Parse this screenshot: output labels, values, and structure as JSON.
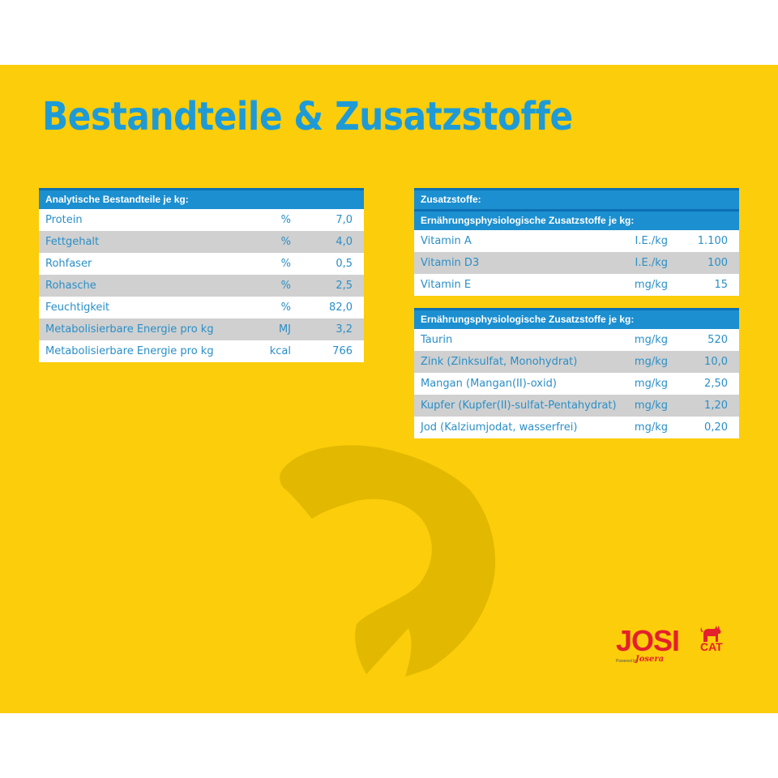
{
  "title": "Bestandteile & Zusatzstoffe",
  "colors": {
    "background": "#fbcd0a",
    "accent": "#1e9bd7",
    "header": "#1b8fd0",
    "alt_row": "#d0d0d0",
    "logo": "#e3202b"
  },
  "analytic": {
    "header": "Analytische Bestandteile je kg:",
    "rows": [
      {
        "name": "Protein",
        "unit": "%",
        "value": "7,0"
      },
      {
        "name": "Fettgehalt",
        "unit": "%",
        "value": "4,0"
      },
      {
        "name": "Rohfaser",
        "unit": "%",
        "value": "0,5"
      },
      {
        "name": "Rohasche",
        "unit": "%",
        "value": "2,5"
      },
      {
        "name": "Feuchtigkeit",
        "unit": "%",
        "value": "82,0"
      },
      {
        "name": "Metabolisierbare Energie pro kg",
        "unit": "MJ",
        "value": "3,2"
      },
      {
        "name": "Metabolisierbare Energie pro kg",
        "unit": "kcal",
        "value": "766"
      }
    ]
  },
  "additives": {
    "header": "Zusatzstoffe:",
    "subheader": "Ernährungsphysiologische Zusatzstoffe je kg:",
    "rows": [
      {
        "name": "Vitamin A",
        "unit": "I.E./kg",
        "value": "1.100"
      },
      {
        "name": "Vitamin D3",
        "unit": "I.E./kg",
        "value": "100"
      },
      {
        "name": "Vitamin E",
        "unit": "mg/kg",
        "value": "15"
      }
    ]
  },
  "additives2": {
    "header": "Ernährungsphysiologische Zusatzstoffe je kg:",
    "rows": [
      {
        "name": "Taurin",
        "unit": "mg/kg",
        "value": "520"
      },
      {
        "name": "Zink (Zinksulfat, Monohydrat)",
        "unit": "mg/kg",
        "value": "10,0"
      },
      {
        "name": "Mangan (Mangan(II)-oxid)",
        "unit": "mg/kg",
        "value": "2,50"
      },
      {
        "name": "Kupfer (Kupfer(II)-sulfat-Pentahydrat)",
        "unit": "mg/kg",
        "value": "1,20"
      },
      {
        "name": "Jod (Kalziumjodat, wasserfrei)",
        "unit": "mg/kg",
        "value": "0,20"
      }
    ]
  },
  "logo": {
    "main": "JOSI",
    "sub": "CAT",
    "powered": "Powered by",
    "brand": "Josera"
  },
  "icons": {
    "fish": "fish-silhouette-icon",
    "cat": "cat-icon"
  }
}
